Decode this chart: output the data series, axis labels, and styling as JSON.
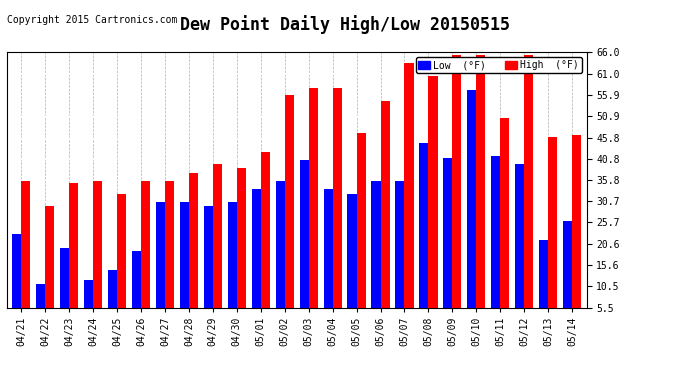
{
  "title": "Dew Point Daily High/Low 20150515",
  "copyright": "Copyright 2015 Cartronics.com",
  "categories": [
    "04/21",
    "04/22",
    "04/23",
    "04/24",
    "04/25",
    "04/26",
    "04/27",
    "04/28",
    "04/29",
    "04/30",
    "05/01",
    "05/02",
    "05/03",
    "05/04",
    "05/05",
    "05/06",
    "05/07",
    "05/08",
    "05/09",
    "05/10",
    "05/11",
    "05/12",
    "05/13",
    "05/14"
  ],
  "low_values": [
    23.0,
    11.0,
    19.5,
    12.0,
    14.5,
    19.0,
    30.5,
    30.5,
    29.5,
    30.5,
    33.5,
    35.5,
    40.5,
    33.5,
    32.5,
    35.5,
    35.5,
    44.5,
    41.0,
    57.0,
    41.5,
    39.5,
    21.5,
    26.0
  ],
  "high_values": [
    35.5,
    29.5,
    35.0,
    35.5,
    32.5,
    35.5,
    35.5,
    37.5,
    39.5,
    38.5,
    42.5,
    56.0,
    57.5,
    57.5,
    47.0,
    54.5,
    63.5,
    60.5,
    65.5,
    65.5,
    50.5,
    65.5,
    46.0,
    46.5
  ],
  "low_color": "#0000ff",
  "high_color": "#ff0000",
  "bg_color": "#ffffff",
  "plot_bg_color": "#ffffff",
  "grid_color": "#b0b0b0",
  "ymin": 5.5,
  "ymax": 66.0,
  "yticks": [
    5.5,
    10.5,
    15.6,
    20.6,
    25.7,
    30.7,
    35.8,
    40.8,
    45.8,
    50.9,
    55.9,
    61.0,
    66.0
  ],
  "legend_low_label": "Low  (°F)",
  "legend_high_label": "High  (°F)",
  "title_fontsize": 12,
  "copyright_fontsize": 7,
  "tick_fontsize": 7,
  "bar_width": 0.38
}
